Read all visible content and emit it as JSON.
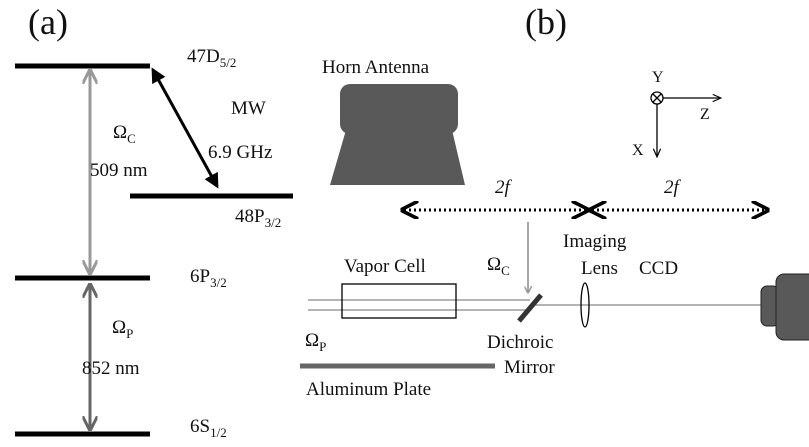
{
  "panel_a": {
    "label": "(a)",
    "levels": [
      {
        "name": "47D",
        "sub": "5/2"
      },
      {
        "name": "48P",
        "sub": "3/2"
      },
      {
        "name": "6P",
        "sub": "3/2"
      },
      {
        "name": "6S",
        "sub": "1/2"
      }
    ],
    "coupling": {
      "symbol": "Ω",
      "sub": "C",
      "wavelength": "509 nm"
    },
    "probe": {
      "symbol": "Ω",
      "sub": "P",
      "wavelength": "852 nm"
    },
    "microwave": {
      "name": "MW",
      "frequency": "6.9 GHz"
    }
  },
  "panel_b": {
    "label": "(b)",
    "antenna": "Horn Antenna",
    "axes": {
      "y": "Y",
      "z": "Z",
      "x": "X"
    },
    "distances": [
      "2f",
      "2f"
    ],
    "coupling": {
      "symbol": "Ω",
      "sub": "C"
    },
    "probe": {
      "symbol": "Ω",
      "sub": "P"
    },
    "vapor_cell": "Vapor Cell",
    "lens": [
      "Imaging",
      "Lens"
    ],
    "camera": "CCD",
    "mirror": [
      "Dichroic",
      "Mirror"
    ],
    "plate": "Aluminum Plate"
  }
}
